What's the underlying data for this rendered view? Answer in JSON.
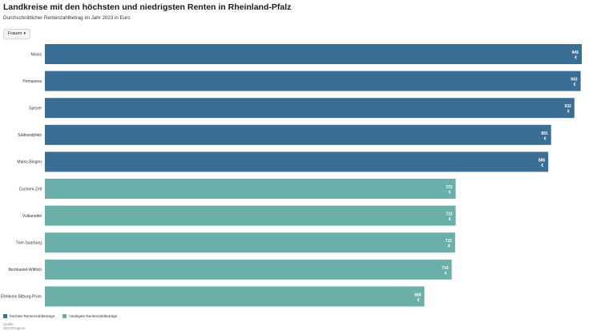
{
  "title": "Landkreise mit den höchsten und niedrigsten Renten in Rheinland-Pfalz",
  "subtitle": "Durchschnittlicher Rentenzahlbetrag im Jahr 2023 in Euro",
  "filter": {
    "selected": "Frauen"
  },
  "legend": {
    "high_label": "höchste Rentenzahlbeträge",
    "low_label": "niedrigste Rentenzahlbeträge"
  },
  "source": {
    "label": "Quelle:",
    "name": "GDV/Prognos"
  },
  "colors": {
    "high": "#3b6e94",
    "low": "#6bafa9"
  },
  "chart_data": {
    "type": "bar",
    "orientation": "horizontal",
    "unit": "€",
    "xlim": [
      0,
      945
    ],
    "categories": [
      "Mainz",
      "Pirmasens",
      "Speyer",
      "Südwestpfalz",
      "Mainz-Bingen",
      "Cochem-Zell",
      "Vulkaneifel",
      "Trier-Saarburg",
      "Bernkastel-Wittlich",
      "Eifelkreis Bitburg-Prüm"
    ],
    "values": [
      945,
      943,
      932,
      891,
      886,
      723,
      723,
      722,
      716,
      668
    ],
    "groups": [
      "high",
      "high",
      "high",
      "high",
      "high",
      "low",
      "low",
      "low",
      "low",
      "low"
    ]
  }
}
